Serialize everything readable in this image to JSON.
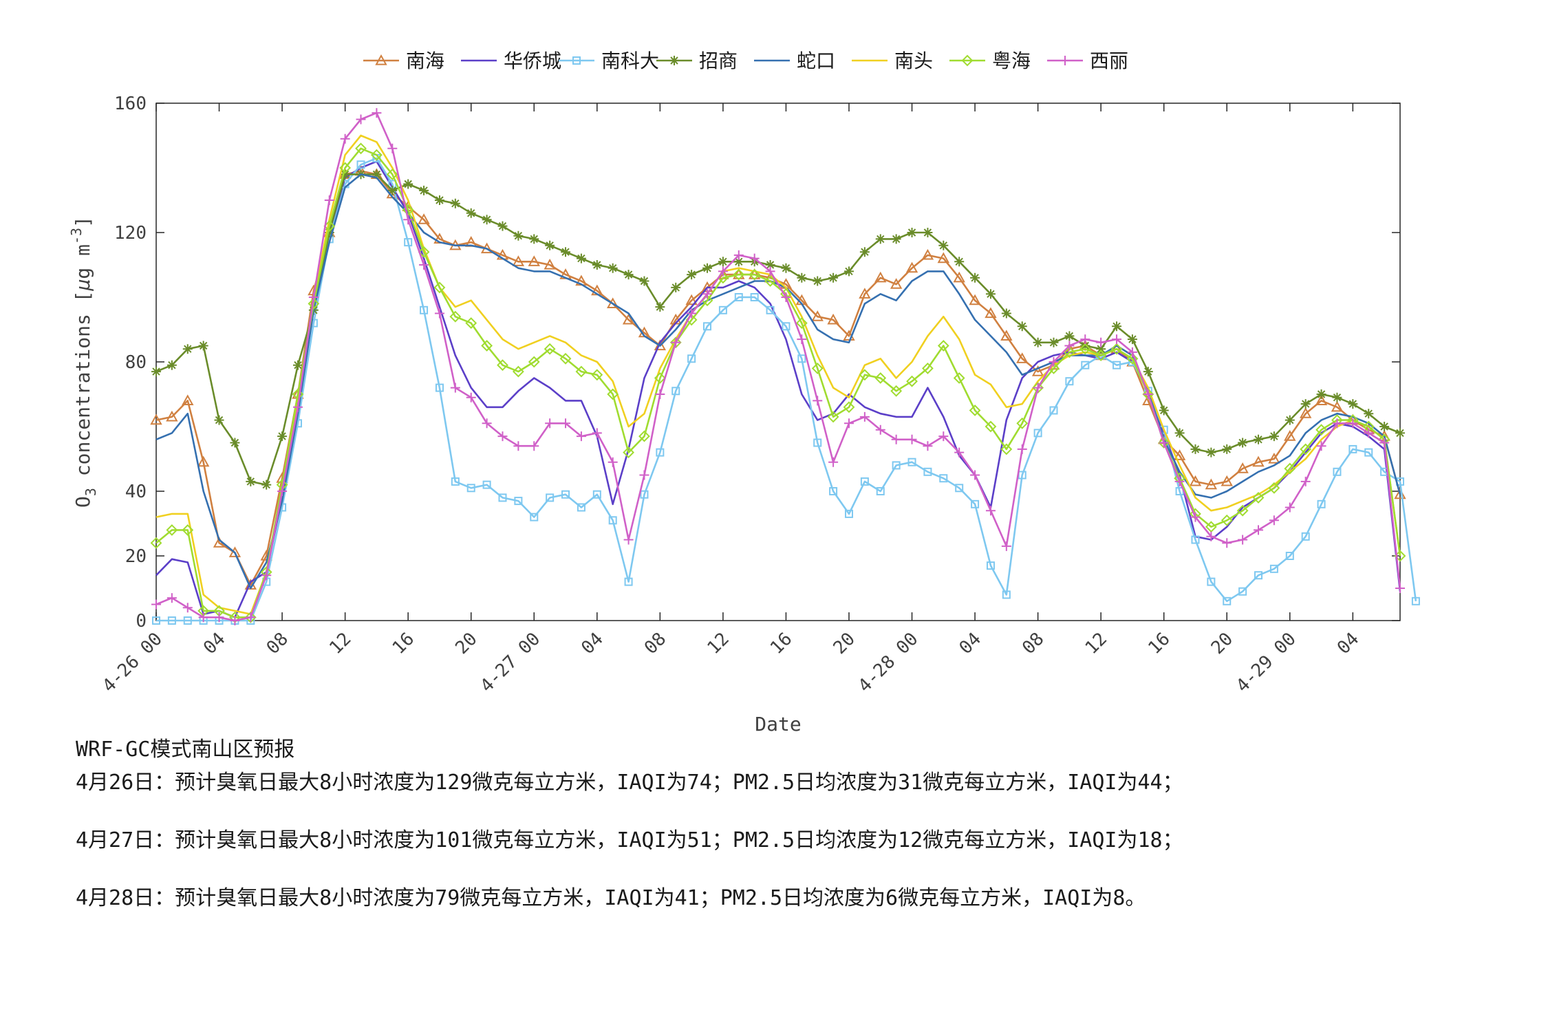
{
  "chart_data": {
    "type": "line",
    "xlabel": "Date",
    "ylabel": "O3 concentrations [μg m-3]",
    "ylabel_parts": {
      "o": "O",
      "sub": "3",
      "mid": " concentrations [",
      "mu": "μ",
      "g": "g m",
      "sup": "-3",
      "end": "]"
    },
    "ylim": [
      0,
      160
    ],
    "yticks": [
      0,
      20,
      40,
      80,
      120,
      160
    ],
    "xlim": [
      0,
      79
    ],
    "xticks": [
      {
        "x": 0,
        "label": "4-26 00"
      },
      {
        "x": 4,
        "label": "04"
      },
      {
        "x": 8,
        "label": "08"
      },
      {
        "x": 12,
        "label": "12"
      },
      {
        "x": 16,
        "label": "16"
      },
      {
        "x": 20,
        "label": "20"
      },
      {
        "x": 24,
        "label": "4-27 00"
      },
      {
        "x": 28,
        "label": "04"
      },
      {
        "x": 32,
        "label": "08"
      },
      {
        "x": 36,
        "label": "12"
      },
      {
        "x": 40,
        "label": "16"
      },
      {
        "x": 44,
        "label": "20"
      },
      {
        "x": 48,
        "label": "4-28 00"
      },
      {
        "x": 52,
        "label": "04"
      },
      {
        "x": 56,
        "label": "08"
      },
      {
        "x": 60,
        "label": "12"
      },
      {
        "x": 64,
        "label": "16"
      },
      {
        "x": 68,
        "label": "20"
      },
      {
        "x": 72,
        "label": "4-29 00"
      },
      {
        "x": 76,
        "label": "04"
      }
    ],
    "grid": false,
    "legend_position": "top-center",
    "series": [
      {
        "name": "南海",
        "color": "#D08040",
        "marker": "triangle",
        "values": [
          62,
          63,
          68,
          49,
          24,
          21,
          11,
          20,
          44,
          70,
          102,
          120,
          138,
          139,
          138,
          132,
          128,
          124,
          118,
          116,
          117,
          115,
          113,
          111,
          111,
          110,
          107,
          105,
          102,
          98,
          93,
          89,
          85,
          93,
          99,
          103,
          107,
          107,
          107,
          106,
          104,
          99,
          94,
          93,
          88,
          101,
          106,
          104,
          109,
          113,
          112,
          106,
          99,
          95,
          88,
          81,
          77,
          79,
          84,
          85,
          82,
          84,
          80,
          68,
          56,
          51,
          43,
          42,
          43,
          47,
          49,
          50,
          57,
          64,
          68,
          66,
          62,
          59,
          57,
          39
        ]
      },
      {
        "name": "华侨城",
        "color": "#5B3FC8",
        "marker": "none",
        "values": [
          14,
          19,
          18,
          2,
          3,
          1,
          12,
          15,
          38,
          68,
          100,
          119,
          137,
          140,
          142,
          134,
          126,
          112,
          97,
          82,
          72,
          66,
          66,
          71,
          75,
          72,
          68,
          68,
          57,
          36,
          53,
          75,
          86,
          92,
          97,
          103,
          103,
          105,
          103,
          98,
          87,
          70,
          62,
          64,
          70,
          66,
          64,
          63,
          63,
          72,
          63,
          51,
          45,
          35,
          62,
          75,
          80,
          82,
          83,
          82,
          81,
          83,
          80,
          71,
          58,
          45,
          26,
          25,
          29,
          35,
          38,
          41,
          46,
          52,
          58,
          61,
          60,
          57,
          53,
          9
        ]
      },
      {
        "name": "南科大",
        "color": "#7EC8F0",
        "marker": "square",
        "values": [
          0,
          0,
          0,
          0,
          0,
          0,
          0,
          12,
          35,
          61,
          92,
          118,
          135,
          141,
          143,
          135,
          117,
          96,
          72,
          43,
          41,
          42,
          38,
          37,
          32,
          38,
          39,
          35,
          39,
          31,
          12,
          39,
          52,
          71,
          81,
          91,
          96,
          100,
          100,
          96,
          91,
          81,
          55,
          40,
          33,
          43,
          40,
          48,
          49,
          46,
          44,
          41,
          36,
          17,
          8,
          45,
          58,
          65,
          74,
          79,
          82,
          79,
          80,
          71,
          59,
          40,
          25,
          12,
          6,
          9,
          14,
          16,
          20,
          26,
          36,
          46,
          53,
          52,
          46,
          43,
          6
        ]
      },
      {
        "name": "招商",
        "color": "#6A8C2A",
        "marker": "star",
        "values": [
          77,
          79,
          84,
          85,
          62,
          55,
          43,
          42,
          57,
          79,
          96,
          120,
          138,
          138,
          138,
          133,
          135,
          133,
          130,
          129,
          126,
          124,
          122,
          119,
          118,
          116,
          114,
          112,
          110,
          109,
          107,
          105,
          97,
          103,
          107,
          109,
          111,
          111,
          111,
          110,
          109,
          106,
          105,
          106,
          108,
          114,
          118,
          118,
          120,
          120,
          116,
          111,
          106,
          101,
          95,
          91,
          86,
          86,
          88,
          85,
          84,
          91,
          87,
          77,
          65,
          58,
          53,
          52,
          53,
          55,
          56,
          57,
          62,
          67,
          70,
          69,
          67,
          64,
          60,
          58
        ]
      },
      {
        "name": "蛇口",
        "color": "#3570B0",
        "marker": "none",
        "values": [
          56,
          58,
          64,
          40,
          25,
          21,
          10,
          18,
          37,
          64,
          96,
          117,
          134,
          138,
          137,
          131,
          126,
          120,
          117,
          116,
          116,
          115,
          112,
          109,
          108,
          108,
          106,
          104,
          101,
          98,
          95,
          88,
          85,
          90,
          96,
          99,
          101,
          103,
          105,
          105,
          103,
          98,
          90,
          87,
          86,
          98,
          101,
          99,
          105,
          108,
          108,
          101,
          93,
          88,
          83,
          76,
          78,
          80,
          82,
          82,
          82,
          85,
          82,
          71,
          56,
          46,
          39,
          38,
          40,
          43,
          46,
          48,
          51,
          58,
          62,
          64,
          63,
          61,
          57,
          39
        ]
      },
      {
        "name": "南头",
        "color": "#F0D020",
        "marker": "none",
        "values": [
          32,
          33,
          33,
          8,
          4,
          3,
          2,
          15,
          40,
          67,
          100,
          124,
          144,
          150,
          148,
          140,
          130,
          115,
          103,
          97,
          99,
          93,
          87,
          84,
          86,
          88,
          86,
          82,
          80,
          74,
          60,
          64,
          78,
          87,
          95,
          101,
          108,
          109,
          108,
          107,
          103,
          94,
          82,
          72,
          69,
          79,
          81,
          75,
          80,
          88,
          94,
          87,
          76,
          73,
          66,
          67,
          74,
          79,
          82,
          83,
          82,
          84,
          81,
          72,
          59,
          48,
          38,
          34,
          35,
          37,
          39,
          42,
          46,
          50,
          56,
          60,
          62,
          60,
          56,
          20
        ]
      },
      {
        "name": "粤海",
        "color": "#A0DC30",
        "marker": "diamond",
        "values": [
          24,
          28,
          28,
          3,
          3,
          1,
          1,
          15,
          42,
          70,
          98,
          122,
          140,
          146,
          144,
          138,
          127,
          114,
          103,
          94,
          92,
          85,
          79,
          77,
          80,
          84,
          81,
          77,
          76,
          70,
          52,
          57,
          75,
          86,
          93,
          99,
          106,
          107,
          107,
          105,
          101,
          92,
          78,
          63,
          66,
          76,
          75,
          71,
          74,
          78,
          85,
          75,
          65,
          60,
          53,
          61,
          72,
          78,
          83,
          84,
          82,
          84,
          81,
          70,
          55,
          44,
          33,
          29,
          31,
          34,
          38,
          41,
          47,
          53,
          59,
          62,
          62,
          60,
          56,
          20
        ]
      },
      {
        "name": "西丽",
        "color": "#D060C8",
        "marker": "plus",
        "values": [
          5,
          7,
          4,
          1,
          1,
          0,
          1,
          14,
          40,
          66,
          100,
          130,
          149,
          155,
          157,
          146,
          124,
          110,
          95,
          72,
          69,
          61,
          57,
          54,
          54,
          61,
          61,
          57,
          58,
          49,
          25,
          45,
          70,
          86,
          95,
          101,
          108,
          113,
          112,
          108,
          100,
          87,
          68,
          49,
          61,
          63,
          59,
          56,
          56,
          54,
          57,
          52,
          45,
          34,
          23,
          53,
          72,
          80,
          85,
          87,
          86,
          87,
          83,
          70,
          55,
          43,
          32,
          26,
          24,
          25,
          28,
          31,
          35,
          43,
          54,
          61,
          61,
          58,
          55,
          10
        ]
      }
    ]
  },
  "report": {
    "heading": "WRF-GC模式南山区预报",
    "lines": [
      "4月26日：预计臭氧日最大8小时浓度为129微克每立方米，IAQI为74；PM2.5日均浓度为31微克每立方米，IAQI为44；",
      "4月27日：预计臭氧日最大8小时浓度为101微克每立方米，IAQI为51；PM2.5日均浓度为12微克每立方米，IAQI为18；",
      "4月28日：预计臭氧日最大8小时浓度为79微克每立方米，IAQI为41；PM2.5日均浓度为6微克每立方米，IAQI为8。"
    ]
  }
}
